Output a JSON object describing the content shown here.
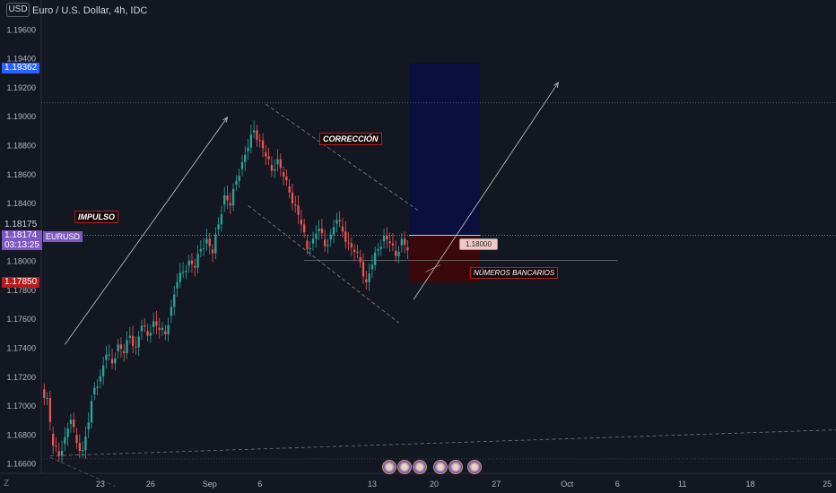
{
  "app": {
    "currency_button": "USD",
    "symbol_title": "Euro / U.S. Dollar, 4h, IDC",
    "zoom_button": "Z"
  },
  "price_tags": {
    "target": "1.19362",
    "current": "1.18175",
    "last": "1.18174",
    "countdown": "03:13:25",
    "stop": "1.17850",
    "symbol_tag": "EURUSD"
  },
  "annotations": {
    "impulso": "IMPULSO",
    "correccion": "CORRECCIÓN",
    "numeros_bancarios": "NÚMEROS BANCARIOS",
    "price_note": "1.18000"
  },
  "colors": {
    "up": "#26a69a",
    "down": "#ef5350",
    "background": "#131722",
    "target_zone": "#0a0f3d",
    "stop_zone": "#3a0808"
  },
  "chart_data": {
    "type": "candlestick",
    "title": "Euro / U.S. Dollar, 4h, IDC",
    "ylim": [
      1.1653,
      1.198
    ],
    "y_ticks": [
      "1.19600",
      "1.19400",
      "1.19200",
      "1.19000",
      "1.18800",
      "1.18600",
      "1.18400",
      "1.18200",
      "1.18000",
      "1.17800",
      "1.17600",
      "1.17400",
      "1.17200",
      "1.17000",
      "1.16800",
      "1.16600"
    ],
    "y_tick_values": [
      1.196,
      1.194,
      1.192,
      1.19,
      1.188,
      1.186,
      1.184,
      1.182,
      1.18,
      1.178,
      1.176,
      1.174,
      1.172,
      1.17,
      1.168,
      1.166
    ],
    "x_ticks": [
      "23",
      "26",
      "Sep",
      "6",
      "13",
      "20",
      "27",
      "Oct",
      "6",
      "11",
      "18",
      "25"
    ],
    "x_tick_index": [
      23,
      40,
      60,
      77,
      115,
      136,
      157,
      181,
      198,
      220,
      243,
      269
    ],
    "xlim_index": [
      3,
      272
    ],
    "series_close_path": [
      [
        5,
        1.1705
      ],
      [
        7,
        1.1672
      ],
      [
        9,
        1.1665
      ],
      [
        11,
        1.1678
      ],
      [
        13,
        1.169
      ],
      [
        15,
        1.1674
      ],
      [
        17,
        1.1669
      ],
      [
        19,
        1.1688
      ],
      [
        21,
        1.1712
      ],
      [
        23,
        1.172
      ],
      [
        25,
        1.1735
      ],
      [
        27,
        1.1729
      ],
      [
        29,
        1.1742
      ],
      [
        31,
        1.1736
      ],
      [
        33,
        1.1748
      ],
      [
        35,
        1.174
      ],
      [
        37,
        1.1755
      ],
      [
        39,
        1.1748
      ],
      [
        41,
        1.1758
      ],
      [
        43,
        1.1752
      ],
      [
        45,
        1.1749
      ],
      [
        47,
        1.1768
      ],
      [
        49,
        1.1785
      ],
      [
        51,
        1.1792
      ],
      [
        53,
        1.18
      ],
      [
        55,
        1.1795
      ],
      [
        57,
        1.1808
      ],
      [
        59,
        1.1815
      ],
      [
        61,
        1.1805
      ],
      [
        63,
        1.1825
      ],
      [
        65,
        1.1845
      ],
      [
        67,
        1.1838
      ],
      [
        69,
        1.1855
      ],
      [
        71,
        1.1868
      ],
      [
        73,
        1.1878
      ],
      [
        75,
        1.189
      ],
      [
        77,
        1.1883
      ],
      [
        79,
        1.1872
      ],
      [
        81,
        1.1862
      ],
      [
        83,
        1.187
      ],
      [
        85,
        1.1858
      ],
      [
        87,
        1.1847
      ],
      [
        89,
        1.1838
      ],
      [
        91,
        1.1825
      ],
      [
        93,
        1.1808
      ],
      [
        95,
        1.1815
      ],
      [
        97,
        1.1822
      ],
      [
        99,
        1.181
      ],
      [
        101,
        1.1818
      ],
      [
        103,
        1.1828
      ],
      [
        105,
        1.182
      ],
      [
        107,
        1.1812
      ],
      [
        109,
        1.1806
      ],
      [
        111,
        1.1799
      ],
      [
        113,
        1.1785
      ],
      [
        115,
        1.1797
      ],
      [
        117,
        1.1808
      ],
      [
        119,
        1.1817
      ],
      [
        121,
        1.1812
      ],
      [
        123,
        1.1803
      ],
      [
        125,
        1.1815
      ],
      [
        127,
        1.1807
      ]
    ],
    "levels": {
      "target": 1.19362,
      "entry": 1.18174,
      "stop": 1.1785,
      "swing_high": 1.1909,
      "bank_number": 1.18
    }
  }
}
